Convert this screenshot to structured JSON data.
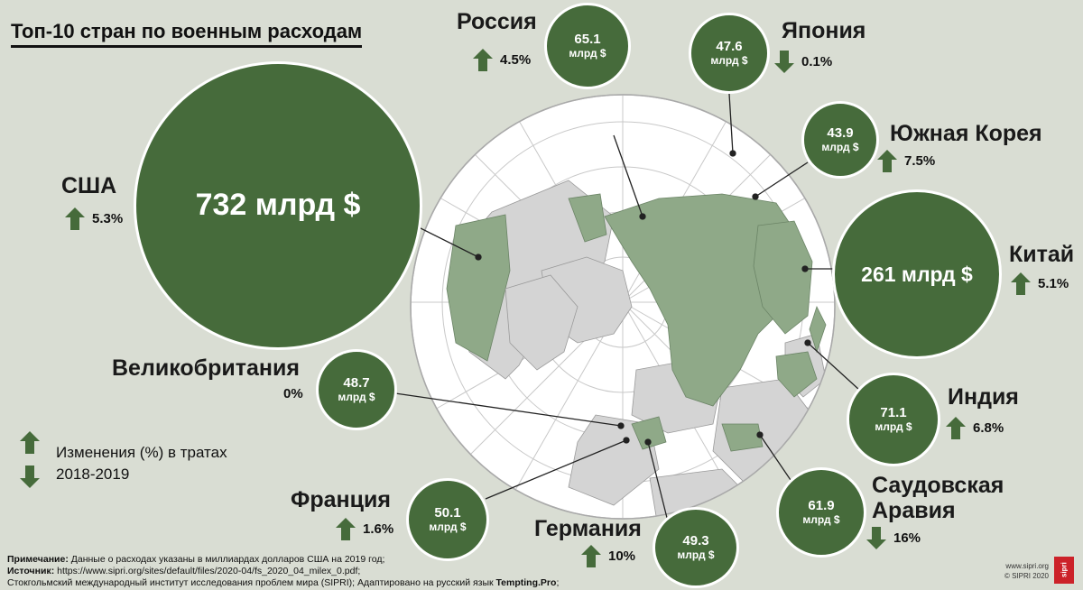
{
  "title": "Топ-10 стран по военным расходам",
  "unit": "млрд $",
  "countries": [
    {
      "id": "usa",
      "name": "США",
      "value": "732",
      "big_label": "732 млрд $",
      "change": "5.3%",
      "dir": "up"
    },
    {
      "id": "china",
      "name": "Китай",
      "value": "261",
      "big_label": "261 млрд $",
      "change": "5.1%",
      "dir": "up"
    },
    {
      "id": "russia",
      "name": "Россия",
      "value": "65.1",
      "change": "4.5%",
      "dir": "up"
    },
    {
      "id": "japan",
      "name": "Япония",
      "value": "47.6",
      "change": "0.1%",
      "dir": "down"
    },
    {
      "id": "korea",
      "name": "Южная Корея",
      "value": "43.9",
      "change": "7.5%",
      "dir": "up"
    },
    {
      "id": "india",
      "name": "Индия",
      "value": "71.1",
      "change": "6.8%",
      "dir": "up"
    },
    {
      "id": "saudi",
      "name": "Саудовская Аравия",
      "name_line1": "Саудовская",
      "name_line2": "Аравия",
      "value": "61.9",
      "change": "16%",
      "dir": "down"
    },
    {
      "id": "germany",
      "name": "Германия",
      "value": "49.3",
      "change": "10%",
      "dir": "up"
    },
    {
      "id": "france",
      "name": "Франция",
      "value": "50.1",
      "change": "1.6%",
      "dir": "up"
    },
    {
      "id": "uk",
      "name": "Великобритания",
      "value": "48.7",
      "change": "0%",
      "dir": "none"
    }
  ],
  "legend": {
    "line1": "Изменения (%) в тратах",
    "line2": "2018-2019"
  },
  "footer": {
    "note_label": "Примечание:",
    "note": " Данные о расходах указаны в миллиардах долларов США на 2019 год;",
    "source_label": "Источник:",
    "source": " https://www.sipri.org/sites/default/files/2020-04/fs_2020_04_milex_0.pdf;",
    "institute": "Стокгольмский международный институт исследования проблем мира (SIPRI); Адаптировано на русский язык ",
    "adapted_by": "Tempting.Pro",
    "adapted_end": ";"
  },
  "credit": {
    "site": "www.sipri.org",
    "copyright": "© SIPRI 2020",
    "logo": "sipri"
  },
  "colors": {
    "accent": "#466b3b",
    "background": "#d9ddd3",
    "land_highlight": "#8fa988",
    "land": "#d4d4d4",
    "ocean": "#ffffff"
  }
}
